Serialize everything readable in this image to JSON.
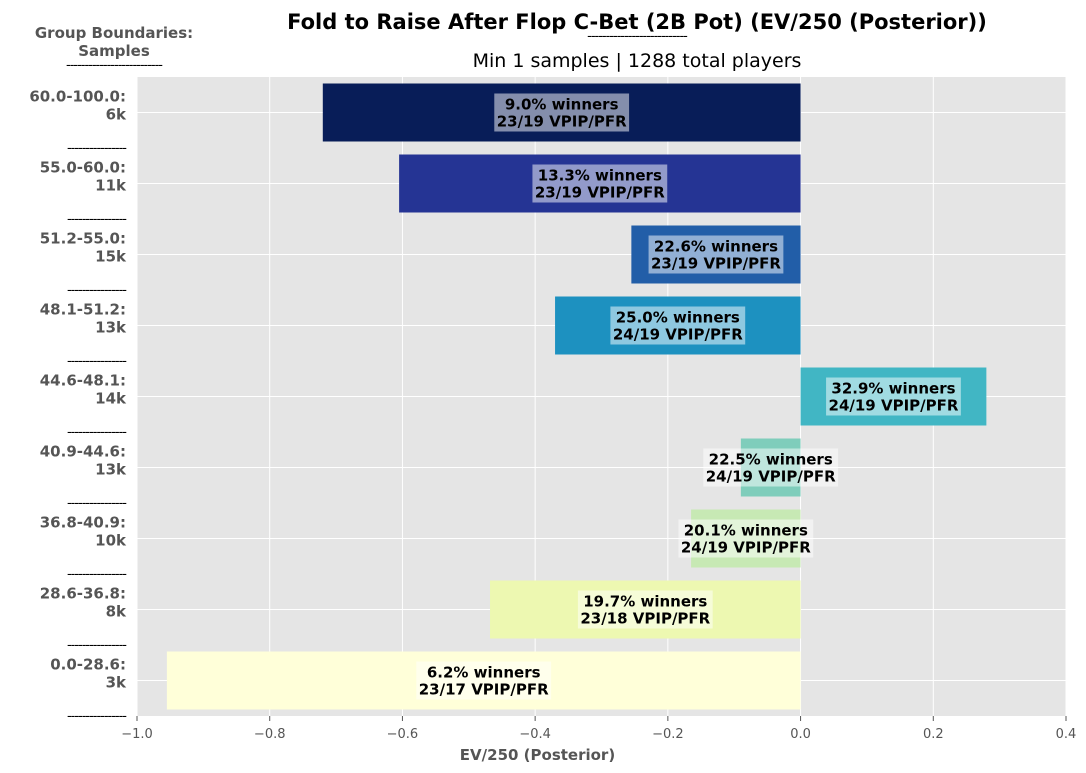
{
  "header": {
    "title": "Fold to Raise After Flop C-Bet (2B Pot) (EV/250 (Posterior))",
    "title_rule": "---------------------------",
    "subtitle": "Min 1 samples | 1288 total players",
    "group_header": "Group Boundaries:\nSamples",
    "group_header_rule": "--------------------------"
  },
  "chart_data": {
    "type": "bar",
    "orientation": "horizontal",
    "title": "Fold to Raise After Flop C-Bet (2B Pot) (EV/250 (Posterior))",
    "subtitle": "Min 1 samples | 1288 total players",
    "xlabel": "EV/250 (Posterior)",
    "ylabel": "Group Boundaries: Samples",
    "xlim": [
      -1.0,
      0.4
    ],
    "xticks": [
      -1.0,
      -0.8,
      -0.6,
      -0.4,
      -0.2,
      0.0,
      0.2,
      0.4
    ],
    "xtick_labels": [
      "−1.0",
      "−0.8",
      "−0.6",
      "−0.4",
      "−0.2",
      "0.0",
      "0.2",
      "0.4"
    ],
    "grid": true,
    "background": "#e5e5e5",
    "separator_label": "----------------",
    "categories": [
      {
        "range": "60.0-100.0:",
        "samples": "6k",
        "value": -0.72,
        "winners": "9.0% winners",
        "vpip_pfr": "23/19 VPIP/PFR",
        "color": "#081d58"
      },
      {
        "range": "55.0-60.0:",
        "samples": "11k",
        "value": -0.605,
        "winners": "13.3% winners",
        "vpip_pfr": "23/19 VPIP/PFR",
        "color": "#253494"
      },
      {
        "range": "51.2-55.0:",
        "samples": "15k",
        "value": -0.255,
        "winners": "22.6% winners",
        "vpip_pfr": "23/19 VPIP/PFR",
        "color": "#225ea8"
      },
      {
        "range": "48.1-51.2:",
        "samples": "13k",
        "value": -0.37,
        "winners": "25.0% winners",
        "vpip_pfr": "24/19 VPIP/PFR",
        "color": "#1d91c0"
      },
      {
        "range": "44.6-48.1:",
        "samples": "14k",
        "value": 0.28,
        "winners": "32.9% winners",
        "vpip_pfr": "24/19 VPIP/PFR",
        "color": "#41b6c4"
      },
      {
        "range": "40.9-44.6:",
        "samples": "13k",
        "value": -0.09,
        "winners": "22.5% winners",
        "vpip_pfr": "24/19 VPIP/PFR",
        "color": "#7fcdbb"
      },
      {
        "range": "36.8-40.9:",
        "samples": "10k",
        "value": -0.165,
        "winners": "20.1% winners",
        "vpip_pfr": "24/19 VPIP/PFR",
        "color": "#c7e9b4"
      },
      {
        "range": "28.6-36.8:",
        "samples": "8k",
        "value": -0.468,
        "winners": "19.7% winners",
        "vpip_pfr": "23/18 VPIP/PFR",
        "color": "#edf8b1"
      },
      {
        "range": "0.0-28.6:",
        "samples": "3k",
        "value": -0.955,
        "winners": "6.2% winners",
        "vpip_pfr": "23/17 VPIP/PFR",
        "color": "#ffffd9"
      }
    ]
  }
}
